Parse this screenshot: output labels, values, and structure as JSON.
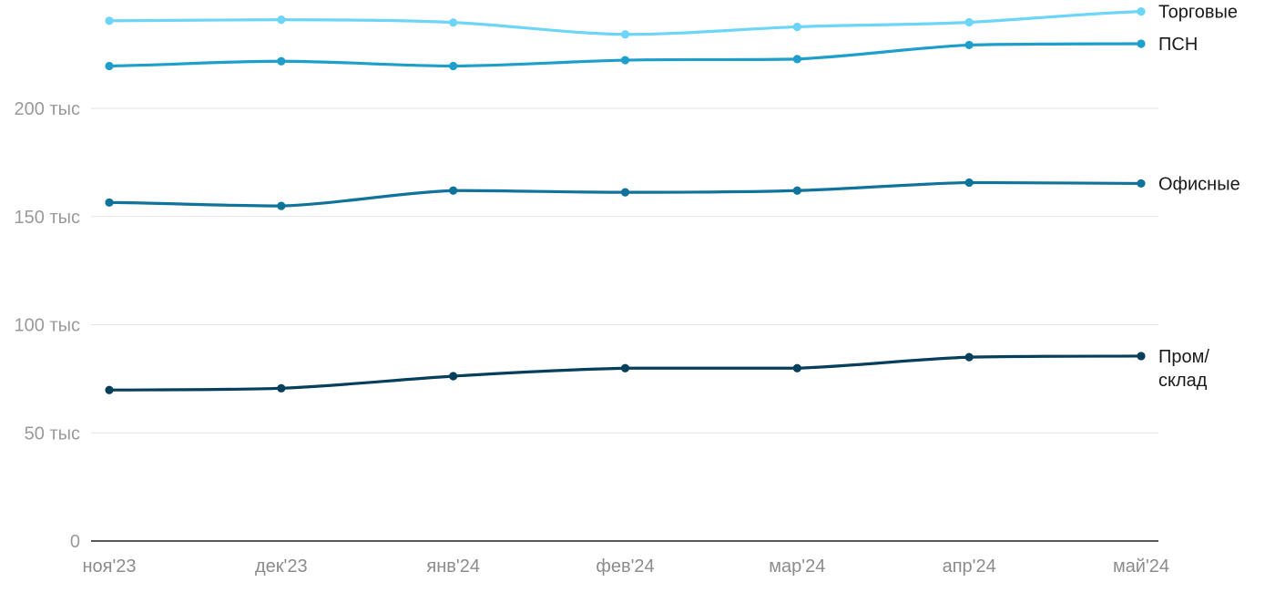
{
  "chart_data": {
    "type": "line",
    "title": "",
    "xlabel": "",
    "ylabel": "",
    "categories": [
      "ноя'23",
      "дек'23",
      "янв'24",
      "фев'24",
      "мар'24",
      "апр'24",
      "май'24"
    ],
    "y_ticks": [
      0,
      50000,
      100000,
      150000,
      200000
    ],
    "y_tick_labels": [
      "0",
      "50 тыс",
      "100 тыс",
      "150 тыс",
      "200 тыс"
    ],
    "ylim": [
      0,
      250000
    ],
    "grid": "horizontal",
    "legend": "end-of-line labels",
    "series": [
      {
        "name": "Торговые",
        "label_lines": [
          "Торговые"
        ],
        "color": "#6dd5f7",
        "values": [
          240500,
          241000,
          239700,
          234200,
          237700,
          239800,
          244800
        ]
      },
      {
        "name": "ПСН",
        "label_lines": [
          "ПСН"
        ],
        "color": "#1e9fcb",
        "values": [
          219600,
          221800,
          219600,
          222300,
          222800,
          229300,
          229900
        ]
      },
      {
        "name": "Офисные",
        "label_lines": [
          "Офисные"
        ],
        "color": "#0f739c",
        "values": [
          156500,
          154900,
          162000,
          161200,
          162000,
          165700,
          165300
        ]
      },
      {
        "name": "Пром/склад",
        "label_lines": [
          "Пром/",
          "склад"
        ],
        "color": "#063f5c",
        "values": [
          69800,
          70600,
          76200,
          79900,
          79900,
          85000,
          85500
        ]
      }
    ]
  }
}
